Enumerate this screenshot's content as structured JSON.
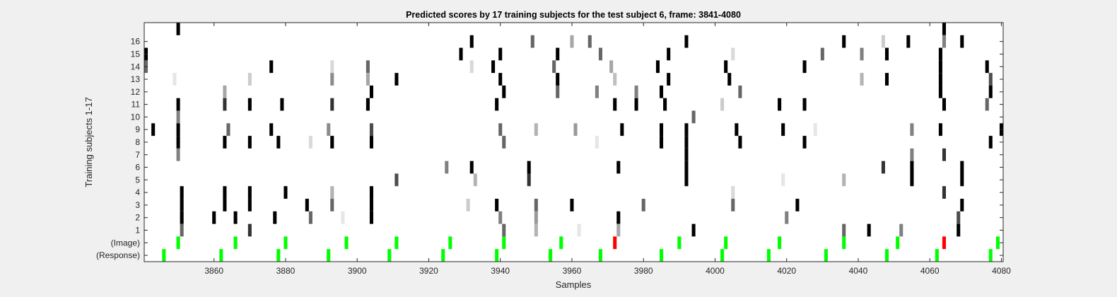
{
  "chart_data": {
    "type": "heatmap",
    "title": "Predicted scores by 17 training subjects for the test subject 6, frame: 3841-4080",
    "xlabel": "Samples",
    "ylabel": "Training subjects 1-17",
    "xlim": [
      3841,
      4080
    ],
    "xticks": [
      3860,
      3880,
      3900,
      3920,
      3940,
      3960,
      3980,
      4000,
      4020,
      4040,
      4060,
      4080
    ],
    "yticks": [
      "16",
      "15",
      "14",
      "13",
      "12",
      "11",
      "10",
      "9",
      "8",
      "7",
      "6",
      "5",
      "4",
      "3",
      "2",
      "1",
      "(Image)",
      "(Response)"
    ],
    "value_encoding": "intensity 0 = white, 1 = black",
    "rows": [
      {
        "name": "17",
        "marks": [
          [
            3850,
            1.0
          ],
          [
            4064,
            1.0
          ]
        ]
      },
      {
        "name": "16",
        "marks": [
          [
            3932,
            1.0
          ],
          [
            3949,
            0.6
          ],
          [
            3960,
            0.35
          ],
          [
            3965,
            0.6
          ],
          [
            3992,
            1.0
          ],
          [
            4036,
            1.0
          ],
          [
            4047,
            0.2
          ],
          [
            4054,
            1.0
          ],
          [
            4064,
            0.5
          ],
          [
            4069,
            1.0
          ]
        ]
      },
      {
        "name": "15",
        "marks": [
          [
            3841,
            1.0
          ],
          [
            3929,
            1.0
          ],
          [
            3940,
            1.0
          ],
          [
            3956,
            1.0
          ],
          [
            3968,
            0.6
          ],
          [
            3987,
            1.0
          ],
          [
            4005,
            0.15
          ],
          [
            4030,
            0.6
          ],
          [
            4041,
            0.5
          ],
          [
            4048,
            1.0
          ],
          [
            4063,
            1.0
          ]
        ]
      },
      {
        "name": "14",
        "marks": [
          [
            3841,
            0.6
          ],
          [
            3876,
            1.0
          ],
          [
            3893,
            0.15
          ],
          [
            3903,
            0.6
          ],
          [
            3932,
            0.15
          ],
          [
            3938,
            1.0
          ],
          [
            3955,
            0.6
          ],
          [
            3971,
            0.35
          ],
          [
            3984,
            1.0
          ],
          [
            4003,
            1.0
          ],
          [
            4025,
            1.0
          ],
          [
            4063,
            1.0
          ],
          [
            4076,
            1.0
          ]
        ]
      },
      {
        "name": "13",
        "marks": [
          [
            3849,
            0.1
          ],
          [
            3870,
            0.2
          ],
          [
            3893,
            0.45
          ],
          [
            3903,
            0.35
          ],
          [
            3911,
            1.0
          ],
          [
            3940,
            1.0
          ],
          [
            3956,
            1.0
          ],
          [
            3972,
            0.25
          ],
          [
            3987,
            1.0
          ],
          [
            4004,
            1.0
          ],
          [
            4041,
            0.3
          ],
          [
            4048,
            1.0
          ],
          [
            4063,
            1.0
          ],
          [
            4077,
            0.7
          ]
        ]
      },
      {
        "name": "12",
        "marks": [
          [
            3863,
            0.35
          ],
          [
            3904,
            1.0
          ],
          [
            3941,
            1.0
          ],
          [
            3956,
            0.6
          ],
          [
            3967,
            0.5
          ],
          [
            3978,
            0.5
          ],
          [
            3985,
            1.0
          ],
          [
            4007,
            0.6
          ],
          [
            4063,
            1.0
          ],
          [
            4077,
            1.0
          ]
        ]
      },
      {
        "name": "11",
        "marks": [
          [
            3850,
            1.0
          ],
          [
            3863,
            0.8
          ],
          [
            3870,
            1.0
          ],
          [
            3879,
            1.0
          ],
          [
            3893,
            0.8
          ],
          [
            3903,
            1.0
          ],
          [
            3939,
            1.0
          ],
          [
            3972,
            1.0
          ],
          [
            3978,
            1.0
          ],
          [
            3986,
            1.0
          ],
          [
            4002,
            0.2
          ],
          [
            4018,
            1.0
          ],
          [
            4025,
            1.0
          ],
          [
            4064,
            1.0
          ],
          [
            4076,
            0.6
          ]
        ]
      },
      {
        "name": "10",
        "marks": [
          [
            3850,
            0.5
          ],
          [
            3994,
            0.6
          ]
        ]
      },
      {
        "name": "9",
        "marks": [
          [
            3843,
            1.0
          ],
          [
            3850,
            1.0
          ],
          [
            3864,
            0.6
          ],
          [
            3876,
            1.0
          ],
          [
            3892,
            0.45
          ],
          [
            3904,
            0.7
          ],
          [
            3940,
            0.6
          ],
          [
            3950,
            0.3
          ],
          [
            3961,
            0.4
          ],
          [
            3974,
            1.0
          ],
          [
            3985,
            1.0
          ],
          [
            3992,
            1.0
          ],
          [
            4006,
            1.0
          ],
          [
            4019,
            1.0
          ],
          [
            4028,
            0.1
          ],
          [
            4055,
            0.5
          ],
          [
            4063,
            1.0
          ],
          [
            4080,
            1.0
          ]
        ]
      },
      {
        "name": "8",
        "marks": [
          [
            3850,
            1.0
          ],
          [
            3863,
            1.0
          ],
          [
            3870,
            1.0
          ],
          [
            3878,
            1.0
          ],
          [
            3887,
            0.15
          ],
          [
            3893,
            1.0
          ],
          [
            3904,
            1.0
          ],
          [
            3941,
            0.6
          ],
          [
            3967,
            0.1
          ],
          [
            3985,
            1.0
          ],
          [
            3992,
            1.0
          ],
          [
            4007,
            1.0
          ],
          [
            4025,
            1.0
          ],
          [
            4077,
            1.0
          ]
        ]
      },
      {
        "name": "7",
        "marks": [
          [
            3850,
            0.5
          ],
          [
            3992,
            1.0
          ],
          [
            4055,
            0.5
          ],
          [
            4064,
            0.8
          ]
        ]
      },
      {
        "name": "6",
        "marks": [
          [
            3925,
            0.5
          ],
          [
            3932,
            1.0
          ],
          [
            3948,
            1.0
          ],
          [
            3973,
            1.0
          ],
          [
            3992,
            1.0
          ],
          [
            4047,
            0.8
          ],
          [
            4055,
            1.0
          ],
          [
            4069,
            1.0
          ]
        ]
      },
      {
        "name": "5",
        "marks": [
          [
            3911,
            0.7
          ],
          [
            3933,
            0.3
          ],
          [
            3948,
            0.8
          ],
          [
            3992,
            1.0
          ],
          [
            4019,
            0.1
          ],
          [
            4036,
            0.3
          ],
          [
            4055,
            1.0
          ],
          [
            4069,
            1.0
          ]
        ]
      },
      {
        "name": "4",
        "marks": [
          [
            3851,
            1.0
          ],
          [
            3863,
            1.0
          ],
          [
            3870,
            1.0
          ],
          [
            3880,
            1.0
          ],
          [
            3893,
            0.3
          ],
          [
            3904,
            1.0
          ],
          [
            4005,
            0.15
          ],
          [
            4064,
            0.8
          ]
        ]
      },
      {
        "name": "3",
        "marks": [
          [
            3851,
            1.0
          ],
          [
            3863,
            1.0
          ],
          [
            3870,
            1.0
          ],
          [
            3886,
            1.0
          ],
          [
            3893,
            0.6
          ],
          [
            3904,
            1.0
          ],
          [
            3931,
            0.2
          ],
          [
            3939,
            1.0
          ],
          [
            3950,
            0.6
          ],
          [
            3960,
            1.0
          ],
          [
            3980,
            0.6
          ],
          [
            4005,
            0.6
          ],
          [
            4023,
            1.0
          ],
          [
            4069,
            1.0
          ]
        ]
      },
      {
        "name": "2",
        "marks": [
          [
            3851,
            1.0
          ],
          [
            3860,
            1.0
          ],
          [
            3866,
            1.0
          ],
          [
            3877,
            1.0
          ],
          [
            3887,
            0.6
          ],
          [
            3896,
            0.1
          ],
          [
            3904,
            1.0
          ],
          [
            3940,
            0.5
          ],
          [
            3950,
            0.4
          ],
          [
            3973,
            1.0
          ],
          [
            4020,
            0.5
          ],
          [
            4068,
            0.7
          ]
        ]
      },
      {
        "name": "1",
        "marks": [
          [
            3851,
            0.6
          ],
          [
            3870,
            0.8
          ],
          [
            3941,
            0.6
          ],
          [
            3950,
            0.3
          ],
          [
            3962,
            0.1
          ],
          [
            3973,
            0.35
          ],
          [
            3994,
            1.0
          ],
          [
            4036,
            0.6
          ],
          [
            4043,
            1.0
          ],
          [
            4052,
            0.5
          ],
          [
            4068,
            1.0
          ]
        ]
      }
    ],
    "image_events": [
      {
        "x": 3850,
        "color": "#00ff00"
      },
      {
        "x": 3866,
        "color": "#00ff00"
      },
      {
        "x": 3880,
        "color": "#00ff00"
      },
      {
        "x": 3897,
        "color": "#00ff00"
      },
      {
        "x": 3911,
        "color": "#00ff00"
      },
      {
        "x": 3926,
        "color": "#00ff00"
      },
      {
        "x": 3941,
        "color": "#00ff00"
      },
      {
        "x": 3957,
        "color": "#00ff00"
      },
      {
        "x": 3972,
        "color": "#ff0000"
      },
      {
        "x": 3990,
        "color": "#00ff00"
      },
      {
        "x": 4003,
        "color": "#00ff00"
      },
      {
        "x": 4018,
        "color": "#00ff00"
      },
      {
        "x": 4036,
        "color": "#00ff00"
      },
      {
        "x": 4051,
        "color": "#00ff00"
      },
      {
        "x": 4064,
        "color": "#ff0000"
      },
      {
        "x": 4079,
        "color": "#00ff00"
      }
    ],
    "response_events": [
      3846,
      3862,
      3878,
      3892,
      3909,
      3924,
      3939,
      3954,
      3968,
      3985,
      4002,
      4015,
      4031,
      4048,
      4062,
      4077
    ],
    "response_color": "#00ff00",
    "grid": false,
    "legend": "none"
  }
}
